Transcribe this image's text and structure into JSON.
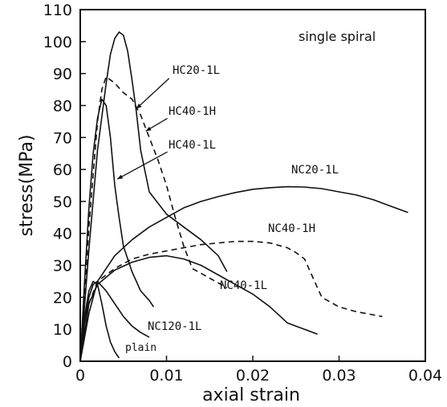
{
  "chart_data": {
    "type": "line",
    "xlabel": "axial strain",
    "ylabel": "stress(MPa)",
    "note": "single spiral",
    "xlim": [
      0,
      0.04
    ],
    "ylim": [
      0,
      110
    ],
    "x_ticks": [
      0,
      0.01,
      0.02,
      0.03,
      0.04
    ],
    "x_tick_labels": [
      "0",
      "0.01",
      "0.02",
      "0.03",
      "0.04"
    ],
    "y_ticks": [
      0,
      10,
      20,
      30,
      40,
      50,
      60,
      70,
      80,
      90,
      100,
      110
    ],
    "y_tick_labels": [
      "0",
      "10",
      "20",
      "30",
      "40",
      "50",
      "60",
      "70",
      "80",
      "90",
      "100",
      "110"
    ],
    "series": [
      {
        "name": "HC20-1L",
        "style": "solid",
        "x": [
          0,
          0.001,
          0.002,
          0.003,
          0.0035,
          0.004,
          0.0045,
          0.005,
          0.0055,
          0.006,
          0.0065,
          0.007,
          0.008,
          0.01,
          0.012,
          0.014,
          0.016,
          0.017
        ],
        "y": [
          0,
          35,
          66,
          87,
          96,
          101,
          103,
          102,
          97,
          88,
          78,
          66,
          53,
          46,
          42,
          38,
          33,
          28
        ]
      },
      {
        "name": "HC40-1H",
        "style": "dashed",
        "x": [
          0,
          0.001,
          0.002,
          0.0025,
          0.003,
          0.004,
          0.005,
          0.006,
          0.007,
          0.008,
          0.009,
          0.01,
          0.011,
          0.012,
          0.013,
          0.015,
          0.017
        ],
        "y": [
          0,
          42,
          75,
          85,
          89,
          87,
          84,
          82,
          77,
          70,
          63,
          55,
          45,
          36,
          29,
          26,
          23
        ]
      },
      {
        "name": "HC40-1L",
        "style": "solid",
        "x": [
          0,
          0.0005,
          0.001,
          0.0015,
          0.002,
          0.0025,
          0.003,
          0.0035,
          0.004,
          0.0045,
          0.005,
          0.006,
          0.007,
          0.008,
          0.0085
        ],
        "y": [
          0,
          25,
          48,
          65,
          76,
          82,
          80,
          70,
          55,
          45,
          36,
          28,
          22,
          19,
          17
        ]
      },
      {
        "name": "NC20-1L",
        "style": "solid",
        "x": [
          0,
          0.001,
          0.002,
          0.004,
          0.006,
          0.008,
          0.01,
          0.012,
          0.014,
          0.016,
          0.018,
          0.02,
          0.022,
          0.024,
          0.026,
          0.028,
          0.03,
          0.032,
          0.034,
          0.036,
          0.038
        ],
        "y": [
          0,
          15,
          25,
          33,
          38,
          42,
          45,
          48,
          50,
          51.5,
          52.8,
          53.8,
          54.3,
          54.6,
          54.5,
          54,
          53,
          52,
          50.5,
          48.5,
          46.5
        ]
      },
      {
        "name": "NC40-1H",
        "style": "dashed",
        "x": [
          0,
          0.001,
          0.002,
          0.004,
          0.006,
          0.008,
          0.01,
          0.012,
          0.014,
          0.016,
          0.018,
          0.02,
          0.022,
          0.024,
          0.025,
          0.026,
          0.027,
          0.028,
          0.03,
          0.032,
          0.035
        ],
        "y": [
          0,
          18,
          25,
          29,
          32,
          33.5,
          34.5,
          35.5,
          36.5,
          37,
          37.5,
          37.5,
          37,
          35.5,
          34,
          32,
          26,
          20,
          17,
          15.5,
          14
        ]
      },
      {
        "name": "NC40-1L",
        "style": "solid",
        "x": [
          0,
          0.001,
          0.002,
          0.004,
          0.006,
          0.008,
          0.01,
          0.012,
          0.014,
          0.016,
          0.018,
          0.02,
          0.022,
          0.024,
          0.026,
          0.0275
        ],
        "y": [
          0,
          18,
          24,
          28.5,
          31,
          32.5,
          33,
          32,
          30,
          27,
          24,
          21,
          17,
          12,
          10,
          8.5
        ]
      },
      {
        "name": "NC120-1L",
        "style": "solid",
        "x": [
          0,
          0.0005,
          0.001,
          0.0015,
          0.002,
          0.003,
          0.004,
          0.005,
          0.006,
          0.007,
          0.008
        ],
        "y": [
          0,
          12,
          20,
          24,
          25,
          22,
          18,
          14,
          11,
          9,
          7.5
        ]
      },
      {
        "name": "plain",
        "style": "solid",
        "x": [
          0,
          0.0005,
          0.001,
          0.0015,
          0.002,
          0.0025,
          0.003,
          0.0035,
          0.004,
          0.0045
        ],
        "y": [
          0,
          14,
          22,
          25,
          24,
          18,
          11,
          6,
          3,
          1
        ]
      }
    ]
  }
}
